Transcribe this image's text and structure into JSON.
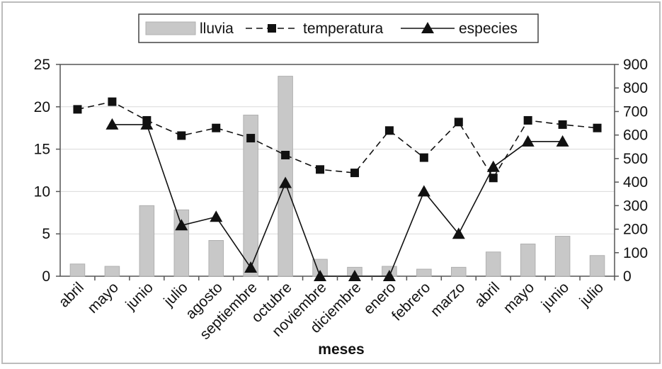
{
  "chart_data": {
    "type": "bar+line",
    "title": "",
    "xlabel": "meses",
    "ylabel_left": "",
    "ylabel_right": "",
    "categories": [
      "abril",
      "mayo",
      "junio",
      "julio",
      "agosto",
      "septiembre",
      "octubre",
      "noviembre",
      "diciembre",
      "enero",
      "febrero",
      "marzo",
      "abril",
      "mayo",
      "junio",
      "julio"
    ],
    "left_axis": {
      "ylim": [
        0,
        25
      ],
      "ticks": [
        "0",
        "5",
        "10",
        "15",
        "20",
        "25"
      ]
    },
    "right_axis": {
      "ylim": [
        0,
        900
      ],
      "ticks": [
        "0",
        "100",
        "200",
        "300",
        "400",
        "500",
        "600",
        "700",
        "800",
        "900"
      ]
    },
    "grid": "horizontal",
    "legend_position": "top",
    "series": [
      {
        "name": "lluvia",
        "kind": "bar",
        "axis": "right",
        "color": "#c8c8c8",
        "values": [
          52,
          42,
          300,
          282,
          152,
          685,
          850,
          72,
          38,
          42,
          30,
          38,
          103,
          137,
          170,
          88
        ]
      },
      {
        "name": "temperatura",
        "kind": "line-dashed",
        "axis": "left",
        "marker": "square",
        "color": "#111111",
        "values": [
          19.7,
          20.6,
          18.4,
          16.6,
          17.5,
          16.3,
          14.3,
          12.6,
          12.2,
          17.2,
          14.0,
          18.2,
          11.6,
          18.4,
          17.9,
          17.5
        ]
      },
      {
        "name": "especies",
        "kind": "line-solid",
        "axis": "left",
        "marker": "triangle",
        "color": "#111111",
        "values": [
          null,
          17.9,
          17.9,
          6.0,
          7.0,
          1.0,
          11.0,
          0.0,
          0.0,
          0.0,
          10.0,
          5.0,
          12.9,
          15.9,
          15.9,
          null
        ]
      }
    ]
  }
}
